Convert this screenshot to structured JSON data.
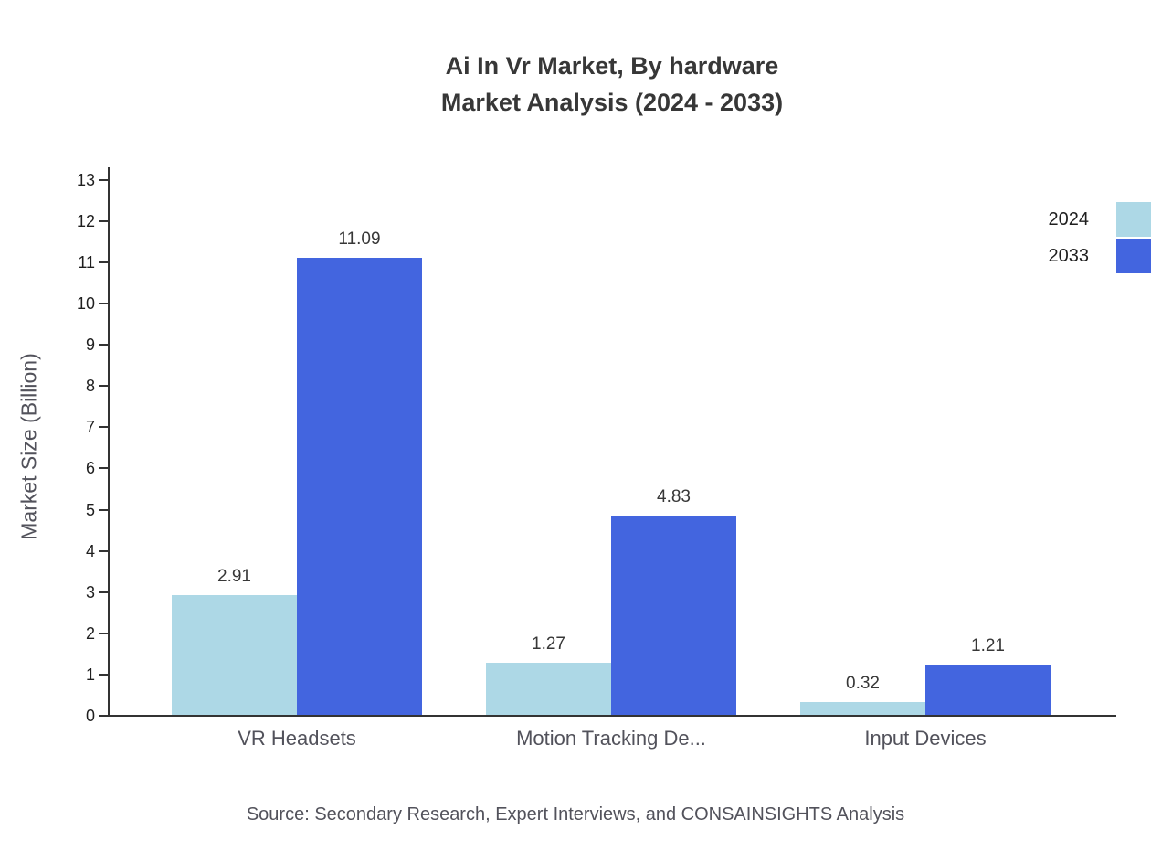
{
  "title": {
    "line1": "Ai In Vr Market, By hardware",
    "line2": "Market Analysis (2024 - 2033)"
  },
  "chart_data": {
    "type": "bar",
    "title": "Ai In Vr Market, By hardware Market Analysis (2024 - 2033)",
    "categories": [
      "VR Headsets",
      "Motion Tracking De...",
      "Input Devices"
    ],
    "series": [
      {
        "name": "2024",
        "color": "#add8e6",
        "values": [
          2.91,
          1.27,
          0.32
        ]
      },
      {
        "name": "2033",
        "color": "#4365df",
        "values": [
          11.09,
          4.83,
          1.21
        ]
      }
    ],
    "xlabel": "",
    "ylabel": "Market Size (Billion)",
    "ylim": [
      0,
      13
    ],
    "ytick_step": 1,
    "grid": false,
    "legend_position": "top-right",
    "value_label_decimals": 2
  },
  "source": "Source: Secondary Research, Expert Interviews, and CONSAINSIGHTS Analysis"
}
